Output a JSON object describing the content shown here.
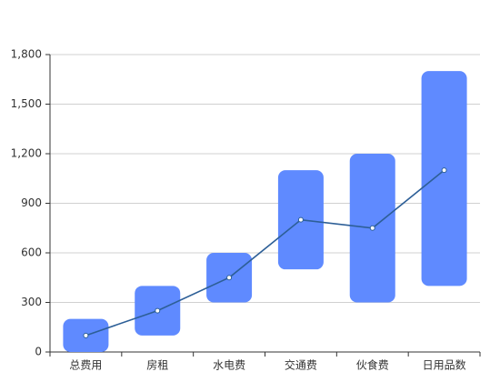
{
  "chart_data": {
    "type": "range-bar-line",
    "categories": [
      "总费用",
      "房租",
      "水电费",
      "交通费",
      "伙食费",
      "日用品数"
    ],
    "low": [
      0,
      100,
      300,
      500,
      300,
      400
    ],
    "high": [
      200,
      400,
      600,
      1100,
      1200,
      1700
    ],
    "bar_color": "#5f8aff",
    "line_values": [
      100,
      250,
      450,
      800,
      750,
      1100
    ],
    "line_color": "#2d5f97",
    "ylim": [
      0,
      1800
    ],
    "yticks": [
      0,
      300,
      600,
      900,
      {
        "value": 1200,
        "label": "1,200"
      },
      {
        "value": 1500,
        "label": "1,500"
      },
      {
        "value": 1800,
        "label": "1,800"
      }
    ],
    "grid": true
  }
}
